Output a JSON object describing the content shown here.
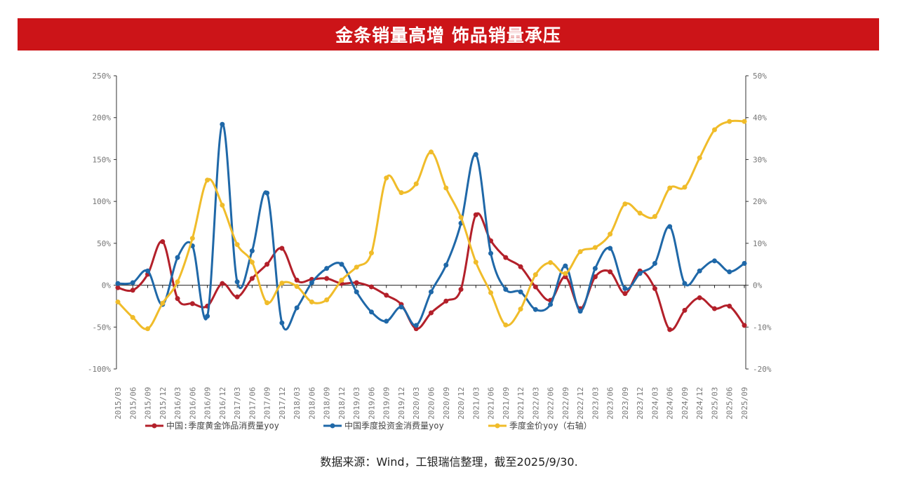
{
  "title": "金条销量高增 饰品销量承压",
  "source": "数据来源：Wind，工银瑞信整理，截至2025/9/30.",
  "chart_data": {
    "type": "line",
    "categories": [
      "2015/03",
      "2015/06",
      "2015/09",
      "2015/12",
      "2016/03",
      "2016/06",
      "2016/09",
      "2016/12",
      "2017/03",
      "2017/06",
      "2017/09",
      "2017/12",
      "2018/03",
      "2018/06",
      "2018/09",
      "2018/12",
      "2019/03",
      "2019/06",
      "2019/09",
      "2019/12",
      "2020/03",
      "2020/06",
      "2020/09",
      "2020/12",
      "2021/03",
      "2021/06",
      "2021/09",
      "2021/12",
      "2022/03",
      "2022/06",
      "2022/09",
      "2022/12",
      "2023/03",
      "2023/06",
      "2023/09",
      "2023/12",
      "2024/03",
      "2024/06",
      "2024/09",
      "2024/12",
      "2025/03",
      "2025/06",
      "2025/09"
    ],
    "left_axis": {
      "ylim": [
        -100,
        250
      ],
      "ticks": [
        "-100%",
        "-50%",
        "0%",
        "50%",
        "100%",
        "150%",
        "200%",
        "250%"
      ],
      "tick_values": [
        -100,
        -50,
        0,
        50,
        100,
        150,
        200,
        250
      ]
    },
    "right_axis": {
      "ylim": [
        -20,
        50
      ],
      "ticks": [
        "-20%",
        "-10%",
        "0%",
        "10%",
        "20%",
        "30%",
        "40%",
        "50%"
      ],
      "tick_values": [
        -20,
        -10,
        0,
        10,
        20,
        30,
        40,
        50
      ]
    },
    "legend_position": "bottom",
    "series": [
      {
        "name": "中国:季度黄金饰品消费量yoy",
        "axis": "left",
        "color": "#b3202a",
        "values": [
          -3,
          -6,
          13,
          52,
          -16,
          -22,
          -25,
          2,
          -14,
          8,
          25,
          44,
          6,
          7,
          8,
          2,
          3,
          -2,
          -12,
          -23,
          -52,
          -33,
          -19,
          -5,
          84,
          53,
          33,
          22,
          -2,
          -18,
          10,
          -28,
          10,
          16,
          -10,
          17,
          -4,
          -53,
          -30,
          -15,
          -28,
          -25,
          -48
        ]
      },
      {
        "name": "中国季度投资金消费量yoy",
        "axis": "left",
        "color": "#1f68a8",
        "values": [
          2,
          3,
          17,
          -23,
          33,
          47,
          -37,
          192,
          4,
          41,
          110,
          -45,
          -27,
          3,
          20,
          25,
          -8,
          -32,
          -43,
          -26,
          -48,
          -8,
          24,
          74,
          156,
          38,
          -5,
          -8,
          -29,
          -23,
          23,
          -31,
          20,
          44,
          -4,
          14,
          26,
          70,
          2,
          17,
          29,
          16,
          26
        ]
      },
      {
        "name": "季度金价yoy（右轴）",
        "axis": "right",
        "color": "#f0bc2a",
        "values": [
          -4,
          -7.7,
          -10.4,
          -4.3,
          0.8,
          11.2,
          25.1,
          19.1,
          9.7,
          5.5,
          -4.2,
          0.5,
          -0.3,
          -4,
          -3.5,
          1.2,
          4.3,
          7.7,
          25.6,
          22.1,
          24.2,
          31.8,
          23.2,
          16.2,
          5.5,
          -1.8,
          -9.5,
          -5.7,
          2.5,
          5.4,
          2.8,
          8,
          9,
          12.2,
          19.4,
          17.2,
          16.4,
          23.2,
          23.4,
          30.4,
          37.1,
          39.1,
          39.1
        ]
      }
    ]
  }
}
